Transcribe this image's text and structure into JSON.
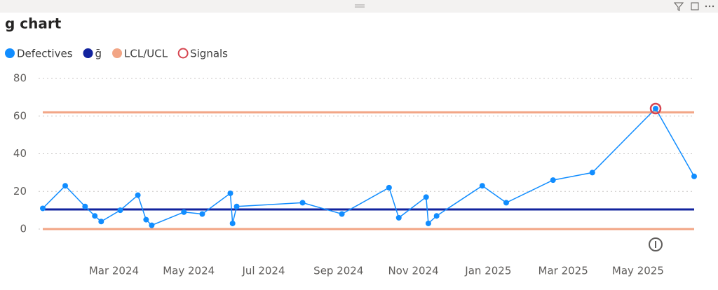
{
  "chart_data": {
    "type": "line",
    "title": "g chart",
    "x": [
      0.1,
      0.7,
      1.23,
      1.49,
      1.66,
      2.17,
      2.64,
      2.86,
      3.01,
      3.87,
      4.36,
      5.11,
      5.17,
      5.28,
      7.04,
      8.09,
      9.35,
      9.61,
      10.34,
      10.4,
      10.62,
      11.84,
      12.48,
      13.73,
      14.78,
      16.47,
      17.5
    ],
    "series": [
      {
        "name": "Defectives",
        "color": "#118DFF",
        "values": [
          11,
          23,
          12,
          7,
          4,
          10,
          18,
          5,
          2,
          9,
          8,
          19,
          3,
          12,
          14,
          8,
          22,
          6,
          17,
          3,
          7,
          23,
          14,
          26,
          30,
          64,
          28
        ]
      },
      {
        "name": "Signals",
        "color": "#D64550",
        "values": [
          null,
          null,
          null,
          null,
          null,
          null,
          null,
          null,
          null,
          null,
          null,
          null,
          null,
          null,
          null,
          null,
          null,
          null,
          null,
          null,
          null,
          null,
          null,
          null,
          null,
          64,
          null
        ]
      }
    ],
    "center_line": {
      "name": "ḡ",
      "color": "#12239E",
      "value": 10.4
    },
    "limits": {
      "name": "LCL/UCL",
      "color": "#F2A585",
      "lcl": 0,
      "ucl": 62
    },
    "xlim": [
      0.1,
      17.5
    ],
    "xticks": [
      {
        "value": 2,
        "label": "Mar 2024"
      },
      {
        "value": 4,
        "label": "May 2024"
      },
      {
        "value": 6,
        "label": "Jul 2024"
      },
      {
        "value": 8,
        "label": "Sep 2024"
      },
      {
        "value": 10,
        "label": "Nov 2024"
      },
      {
        "value": 12,
        "label": "Jan 2025"
      },
      {
        "value": 14,
        "label": "Mar 2025"
      },
      {
        "value": 16,
        "label": "May 2025"
      }
    ],
    "ylim": [
      0,
      80
    ],
    "yticks": [
      0,
      20,
      40,
      60,
      80
    ],
    "grid": true
  }
}
